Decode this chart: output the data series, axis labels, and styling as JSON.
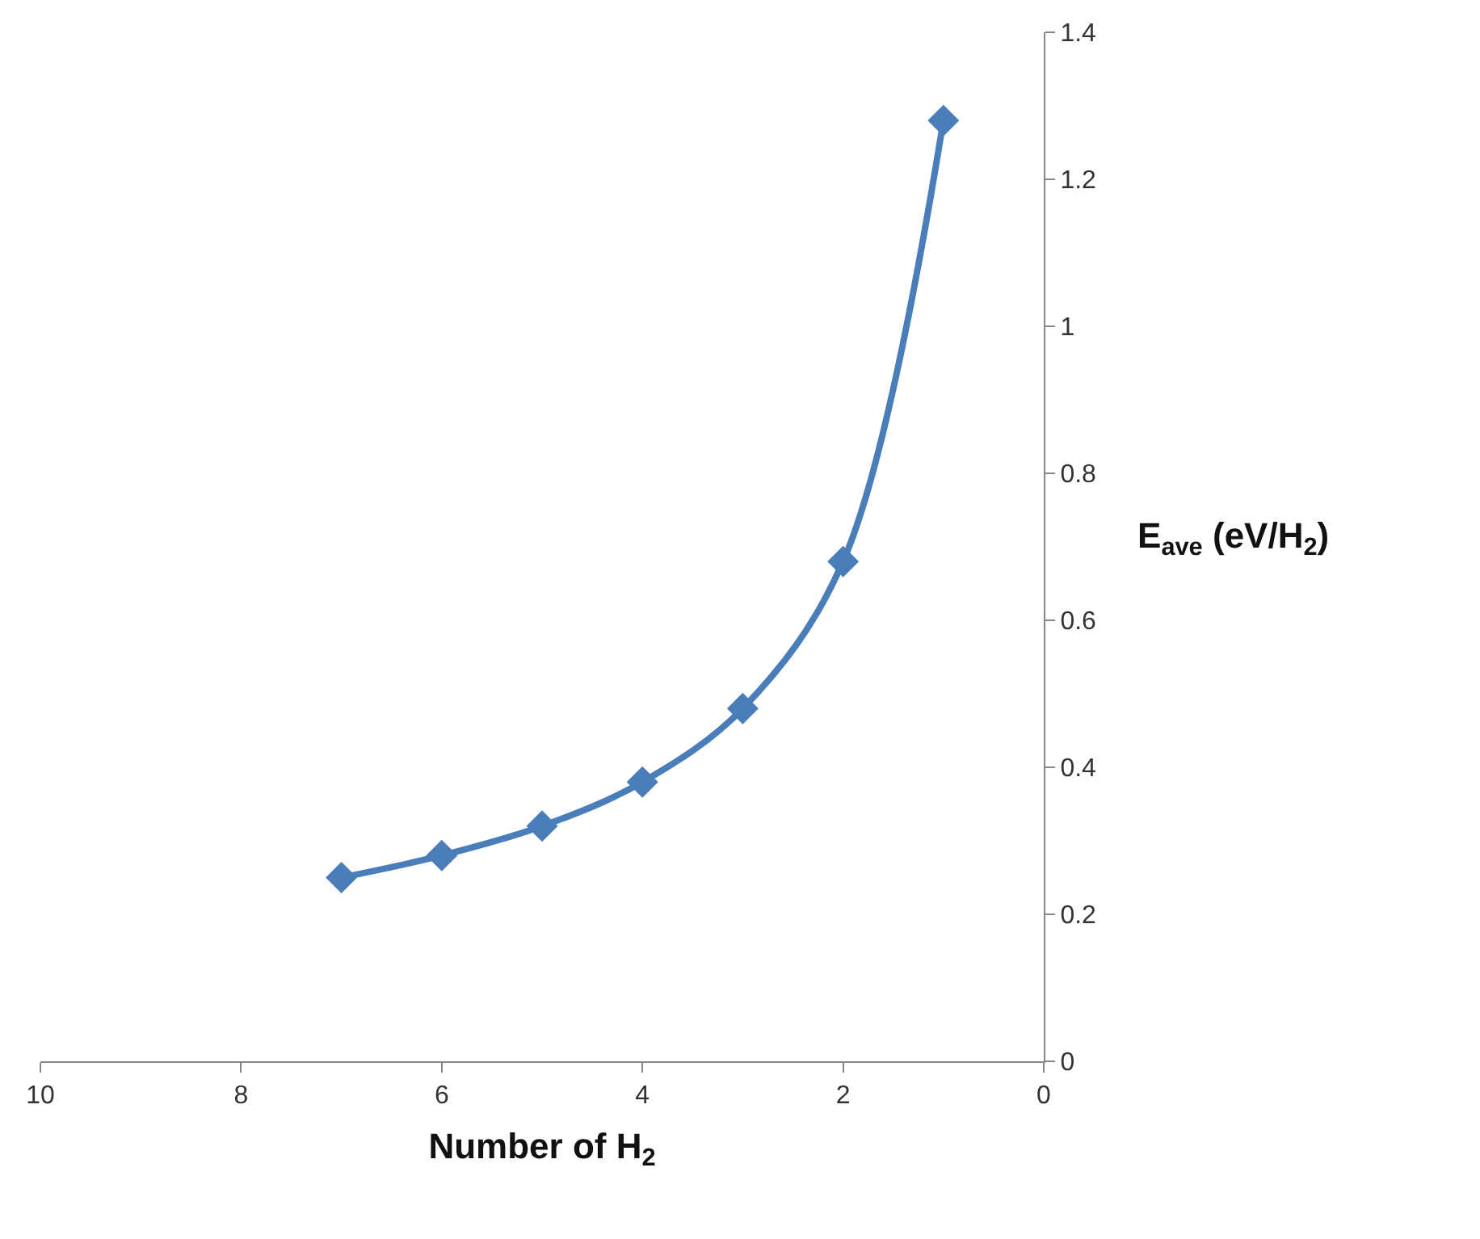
{
  "chart_data": {
    "type": "line",
    "xlabel": "Number of H$_{2}$",
    "ylabel": "E$_{ave}$ (eV/H$_{2}$)",
    "x": [
      7,
      6,
      5,
      4,
      3,
      2,
      1
    ],
    "series": [
      {
        "color": "#4a7ebb",
        "values": [
          0.25,
          0.28,
          0.32,
          0.38,
          0.48,
          0.68,
          1.28
        ]
      }
    ],
    "xlim": [
      10,
      0
    ],
    "xticks": [
      10,
      8,
      6,
      4,
      2,
      0
    ],
    "ylim": [
      0,
      1.4
    ],
    "yticks": [
      0,
      0.2,
      0.4,
      0.6,
      0.8,
      1,
      1.2,
      1.4
    ],
    "legend": false,
    "marker": "diamond",
    "line_style": "solid"
  }
}
